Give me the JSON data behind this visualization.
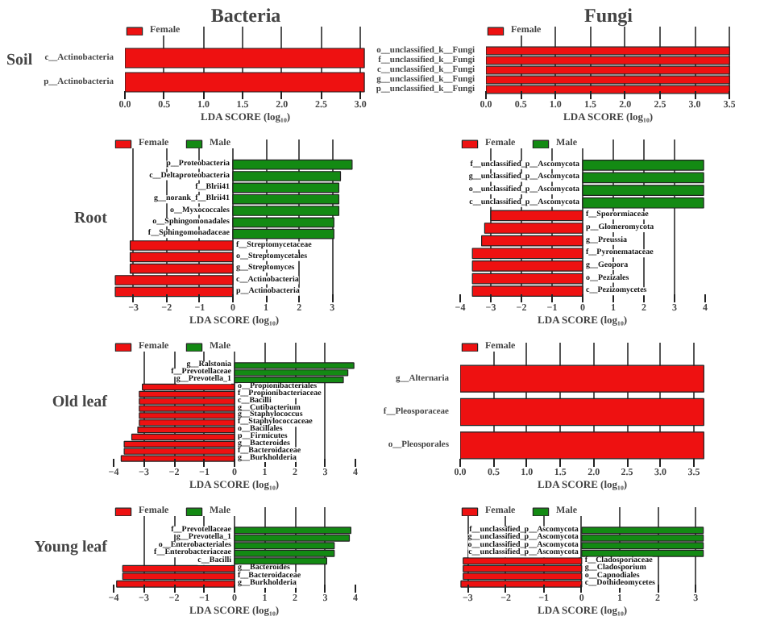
{
  "chart_data": [
    {
      "type": "bar",
      "orientation": "horizontal",
      "title": "Bacteria",
      "ylabel": "Soil",
      "xlabel": "LDA SCORE (log₁₀)",
      "legend": "top left",
      "grid": "x",
      "categories": [
        "c__Actinobacteria",
        "p__Actinobacteria"
      ],
      "series": [
        {
          "name": "Female",
          "color": "#ee1111",
          "values": [
            3.05,
            3.05
          ]
        }
      ],
      "xlim": [
        0,
        3.08
      ],
      "xticks": [
        {
          "value": 0,
          "label": "0.0"
        },
        {
          "value": 0.5,
          "label": "0.5"
        },
        {
          "value": 1,
          "label": "1.0"
        },
        {
          "value": 1.5,
          "label": "1.5"
        },
        {
          "value": 2,
          "label": "2.0"
        },
        {
          "value": 2.5,
          "label": "2.5"
        },
        {
          "value": 3,
          "label": "3.0"
        }
      ]
    },
    {
      "type": "bar",
      "orientation": "horizontal",
      "title": "Fungi",
      "xlabel": "LDA SCORE (log₁₀)",
      "legend": "top left",
      "grid": "x",
      "categories": [
        "o__unclassified_k__Fungi",
        "f__unclassified_k__Fungi",
        "c__unclassified_k__Fungi",
        "g__unclassified_k__Fungi",
        "p__unclassified_k__Fungi"
      ],
      "series": [
        {
          "name": "Female",
          "color": "#ee1111",
          "values": [
            3.5,
            3.5,
            3.5,
            3.5,
            3.5
          ]
        }
      ],
      "xlim": [
        0,
        3.52
      ],
      "xticks": [
        {
          "value": 0,
          "label": "0.0"
        },
        {
          "value": 0.5,
          "label": "0.5"
        },
        {
          "value": 1,
          "label": "1.0"
        },
        {
          "value": 1.5,
          "label": "1.5"
        },
        {
          "value": 2,
          "label": "2.0"
        },
        {
          "value": 2.5,
          "label": "2.5"
        },
        {
          "value": 3,
          "label": "3.0"
        },
        {
          "value": 3.5,
          "label": "3.5"
        }
      ]
    },
    {
      "type": "bar",
      "orientation": "horizontal",
      "ylabel": "Root",
      "xlabel": "LDA SCORE (log₁₀)",
      "legend": "top left",
      "grid": "x",
      "categories": [
        "p__Proteobacteria",
        "c__Deltaproteobacteria",
        "f__Blrii41",
        "g__norank_f__Blrii41",
        "o__Myxococcales",
        "o__Sphingomonadales",
        "f__Sphingomonadaceae",
        "f__Streptomycetaceae",
        "o__Streptomycetales",
        "g__Streptomyces",
        "c__Actinobacteria",
        "p__Actinobacteria"
      ],
      "series": [
        {
          "name": "Female",
          "color": "#ee1111",
          "values": [
            null,
            null,
            null,
            null,
            null,
            null,
            null,
            -3.1,
            -3.1,
            -3.1,
            -3.55,
            -3.55
          ]
        },
        {
          "name": "Male",
          "color": "#138a13",
          "values": [
            3.6,
            3.25,
            3.2,
            3.2,
            3.2,
            3.05,
            3.05,
            null,
            null,
            null,
            null,
            null
          ]
        }
      ],
      "xlim": [
        -3.6,
        3.7
      ],
      "xticks": [
        -3,
        -2,
        -1,
        0,
        1,
        2,
        3
      ]
    },
    {
      "type": "bar",
      "orientation": "horizontal",
      "xlabel": "LDA SCORE (log₁₀)",
      "legend": "top left",
      "grid": "x",
      "categories": [
        "f__unclassified_p__Ascomycota",
        "g__unclassified_p__Ascomycota",
        "o__unclassified_p__Ascomycota",
        "c__unclassified_p__Ascomycota",
        "f__Sporormiaceae",
        "p__Glomeromycota",
        "g__Preussia",
        "f__Pyronemataceae",
        "g__Geopora",
        "o__Pezizales",
        "c__Pezizomycetes"
      ],
      "series": [
        {
          "name": "Female",
          "color": "#ee1111",
          "values": [
            null,
            null,
            null,
            null,
            -3.0,
            -3.2,
            -3.3,
            -3.6,
            -3.6,
            -3.6,
            -3.6
          ]
        },
        {
          "name": "Male",
          "color": "#138a13",
          "values": [
            3.95,
            3.95,
            3.95,
            3.95,
            null,
            null,
            null,
            null,
            null,
            null,
            null
          ]
        }
      ],
      "xlim": [
        -4,
        4
      ],
      "xticks": [
        -4,
        -3,
        -2,
        -1,
        0,
        1,
        2,
        3,
        4
      ]
    },
    {
      "type": "bar",
      "orientation": "horizontal",
      "ylabel": "Old leaf",
      "xlabel": "LDA SCORE (log₁₀)",
      "legend": "top left",
      "grid": "x",
      "categories": [
        "g__Ralstonia",
        "f__Prevotellaceae",
        "g__Prevotella_1",
        "o__Propionibacteriales",
        "f__Propionibacteriaceae",
        "c__Bacilli",
        "g__Cutibacterium",
        "g__Staphylococcus",
        "f__Staphylococcaceae",
        "o__Bacillales",
        "p__Firmicutes",
        "g__Bacteroides",
        "f__Bacteroidaceae",
        "g__Burkholderia"
      ],
      "series": [
        {
          "name": "Female",
          "color": "#ee1111",
          "values": [
            null,
            null,
            null,
            -3.05,
            -3.15,
            -3.15,
            -3.15,
            -3.15,
            -3.15,
            -3.2,
            -3.4,
            -3.65,
            -3.65,
            -3.75
          ]
        },
        {
          "name": "Male",
          "color": "#138a13",
          "values": [
            3.95,
            3.75,
            3.6,
            null,
            null,
            null,
            null,
            null,
            null,
            null,
            null,
            null,
            null,
            null
          ]
        }
      ],
      "xlim": [
        -4,
        4
      ],
      "xticks": [
        -4,
        -3,
        -2,
        -1,
        0,
        1,
        2,
        3,
        4
      ]
    },
    {
      "type": "bar",
      "orientation": "horizontal",
      "xlabel": "LDA SCORE (log₁₀)",
      "legend": "top left",
      "grid": "x",
      "categories": [
        "g__Alternaria",
        "f__Pleosporaceae",
        "o__Pleosporales"
      ],
      "series": [
        {
          "name": "Female",
          "color": "#ee1111",
          "values": [
            3.65,
            3.65,
            3.65
          ]
        }
      ],
      "xlim": [
        0,
        3.67
      ],
      "xticks": [
        {
          "value": 0,
          "label": "0.0"
        },
        {
          "value": 0.5,
          "label": "0.5"
        },
        {
          "value": 1,
          "label": "1.0"
        },
        {
          "value": 1.5,
          "label": "1.5"
        },
        {
          "value": 2,
          "label": "2.0"
        },
        {
          "value": 2.5,
          "label": "2.5"
        },
        {
          "value": 3,
          "label": "3.0"
        },
        {
          "value": 3.5,
          "label": "3.5"
        }
      ]
    },
    {
      "type": "bar",
      "orientation": "horizontal",
      "ylabel": "Young leaf",
      "xlabel": "LDA SCORE (log₁₀)",
      "legend": "top left",
      "grid": "x",
      "categories": [
        "f__Prevotellaceae",
        "g__Prevotella_1",
        "o__Enterobacteriales",
        "f__Enterobacteriaceae",
        "c__Bacilli",
        "g__Bacteroides",
        "f__Bacteroidaceae",
        "g__Burkholderia"
      ],
      "series": [
        {
          "name": "Female",
          "color": "#ee1111",
          "values": [
            null,
            null,
            null,
            null,
            null,
            -3.7,
            -3.7,
            -3.9
          ]
        },
        {
          "name": "Male",
          "color": "#138a13",
          "values": [
            3.85,
            3.8,
            3.3,
            3.3,
            3.05,
            null,
            null,
            null
          ]
        }
      ],
      "xlim": [
        -4,
        4
      ],
      "xticks": [
        -4,
        -3,
        -2,
        -1,
        0,
        1,
        2,
        3,
        4
      ]
    },
    {
      "type": "bar",
      "orientation": "horizontal",
      "xlabel": "LDA SCORE (log₁₀)",
      "legend": "top left",
      "grid": "x",
      "categories": [
        "f__unclassified_p__Ascomycota",
        "g__unclassified_p__Ascomycota",
        "o__unclassified_p__Ascomycota",
        "c__unclassified_p__Ascomycota",
        "f__Cladosporiaceae",
        "g__Cladosporium",
        "o__Capnodiales",
        "c__Dothideomycetes"
      ],
      "series": [
        {
          "name": "Female",
          "color": "#ee1111",
          "values": [
            null,
            null,
            null,
            null,
            -3.12,
            -3.12,
            -3.12,
            -3.18
          ]
        },
        {
          "name": "Male",
          "color": "#138a13",
          "values": [
            3.2,
            3.2,
            3.2,
            3.2,
            null,
            null,
            null,
            null
          ]
        }
      ],
      "xlim": [
        -3.2,
        3.25
      ],
      "xticks": [
        -3,
        -2,
        -1,
        0,
        1,
        2,
        3
      ]
    }
  ]
}
